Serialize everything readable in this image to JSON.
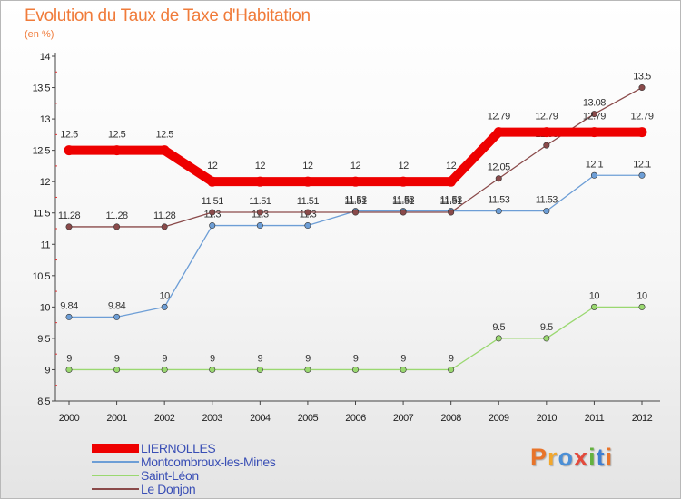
{
  "header": {
    "title": "Evolution du Taux de Taxe d'Habitation",
    "subtitle": "(en %)"
  },
  "brand": {
    "text": "Proxiti",
    "letter_colors": [
      "#e8742a",
      "#f2a72c",
      "#4b8fd6",
      "#e34a3c",
      "#64b23f",
      "#3f7ed1",
      "#e8742a"
    ]
  },
  "chart_data": {
    "type": "line",
    "x": [
      "2000",
      "2001",
      "2002",
      "2003",
      "2004",
      "2005",
      "2006",
      "2007",
      "2008",
      "2009",
      "2010",
      "2011",
      "2012"
    ],
    "ylim": [
      8.5,
      14
    ],
    "yticks": [
      "8.5",
      "9",
      "9.5",
      "10",
      "10.5",
      "11",
      "11.5",
      "12",
      "12.5",
      "13",
      "13.5",
      "14"
    ],
    "grid": false,
    "legend_position": "bottom-left",
    "series": [
      {
        "name": "LIERNOLLES",
        "color": "#ee0000",
        "values": [
          12.5,
          12.5,
          12.5,
          12,
          12,
          12,
          12,
          12,
          12,
          12.79,
          12.79,
          12.79,
          12.79
        ],
        "labels": [
          "12.5",
          "12.5",
          "12.5",
          "12",
          "12",
          "12",
          "12",
          "12",
          "12",
          "12.79",
          "12.79",
          "12.79",
          "12.79"
        ]
      },
      {
        "name": "Montcombroux-les-Mines",
        "color": "#6d9ed6",
        "values": [
          9.84,
          9.84,
          10,
          11.3,
          11.3,
          11.3,
          11.53,
          11.53,
          11.53,
          11.53,
          11.53,
          12.1,
          12.1
        ],
        "labels": [
          "9.84",
          "9.84",
          "10",
          "11.3",
          "11.3",
          "11.3",
          "11.53",
          "11.53",
          "11.53",
          "11.53",
          "11.53",
          "12.1",
          "12.1"
        ]
      },
      {
        "name": "Saint-Léon",
        "color": "#9ad870",
        "values": [
          9,
          9,
          9,
          9,
          9,
          9,
          9,
          9,
          9,
          9.5,
          9.5,
          10,
          10
        ],
        "labels": [
          "9",
          "9",
          "9",
          "9",
          "9",
          "9",
          "9",
          "9",
          "9",
          "9.5",
          "9.5",
          "10",
          "10"
        ]
      },
      {
        "name": "Le Donjon",
        "color": "#8a4a4a",
        "values": [
          11.28,
          11.28,
          11.28,
          11.51,
          11.51,
          11.51,
          11.51,
          11.51,
          11.51,
          12.05,
          12.58,
          13.08,
          13.5
        ],
        "labels": [
          "11.28",
          "11.28",
          "11.28",
          "11.51",
          "11.51",
          "11.51",
          "11.51",
          "11.51",
          "11.51",
          "12.05",
          "12.58",
          "13.08",
          "13.5"
        ]
      }
    ]
  }
}
